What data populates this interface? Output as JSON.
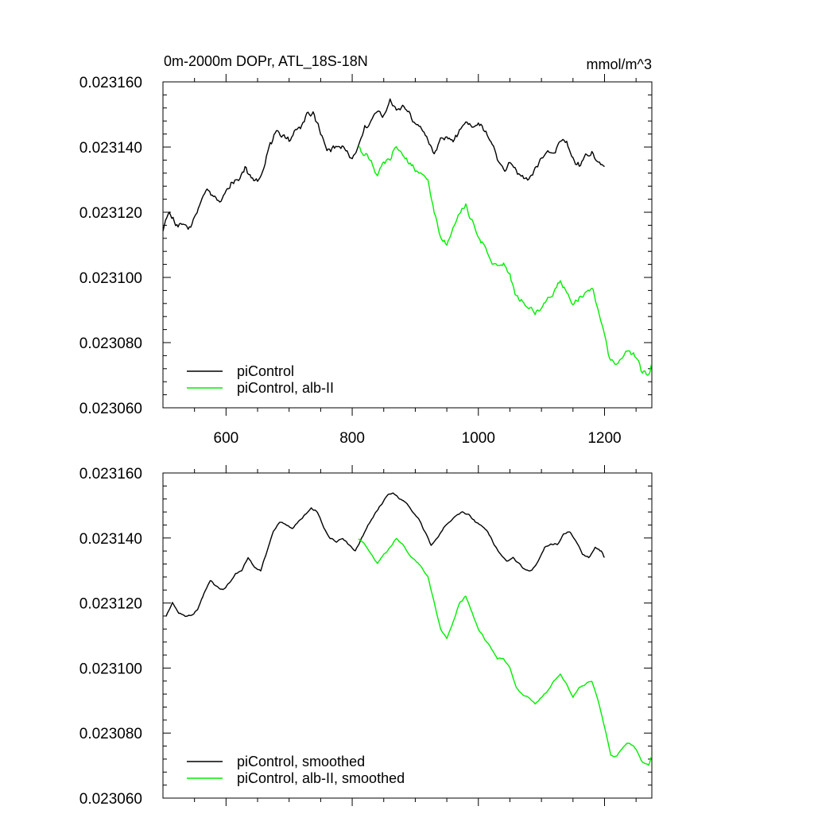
{
  "figure": {
    "title": "0m-2000m DOPr, ATL_18S-18N",
    "units": "mmol/m^3"
  },
  "chart_data": [
    {
      "type": "line",
      "title": "0m-2000m DOPr, ATL_18S-18N",
      "units": "mmol/m^3",
      "xlim": [
        500,
        1275
      ],
      "ylim": [
        0.02306,
        0.02316
      ],
      "x_ticks": [
        600,
        800,
        1000,
        1200
      ],
      "x_tick_labels": [
        "600",
        "800",
        "1000",
        "1200"
      ],
      "y_ticks": [
        0.02306,
        0.02308,
        0.0231,
        0.02312,
        0.02314,
        0.02316
      ],
      "y_tick_labels": [
        "0.023060",
        "0.023080",
        "0.023100",
        "0.023120",
        "0.023140",
        "0.023160"
      ],
      "legend_position": "bottom-left",
      "series": [
        {
          "name": "piControl",
          "color": "#000000",
          "x": [
            500,
            510,
            520,
            530,
            540,
            550,
            560,
            570,
            580,
            590,
            600,
            610,
            620,
            630,
            640,
            650,
            660,
            670,
            680,
            690,
            700,
            710,
            720,
            730,
            740,
            750,
            760,
            770,
            780,
            790,
            800,
            810,
            820,
            830,
            840,
            850,
            860,
            870,
            880,
            890,
            900,
            910,
            920,
            930,
            940,
            950,
            960,
            970,
            980,
            990,
            1000,
            1010,
            1020,
            1030,
            1040,
            1050,
            1060,
            1070,
            1080,
            1090,
            1100,
            1110,
            1120,
            1130,
            1140,
            1150,
            1160,
            1170,
            1180,
            1190,
            1200
          ],
          "values": [
            0.023115,
            0.02312,
            0.023116,
            0.023116,
            0.023115,
            0.023118,
            0.023124,
            0.023127,
            0.023125,
            0.023124,
            0.023126,
            0.023129,
            0.02313,
            0.023134,
            0.02313,
            0.02313,
            0.023134,
            0.023141,
            0.023144,
            0.023144,
            0.023142,
            0.023145,
            0.023147,
            0.02315,
            0.02315,
            0.023144,
            0.023139,
            0.02314,
            0.02314,
            0.023139,
            0.023136,
            0.02314,
            0.023146,
            0.023148,
            0.023151,
            0.023149,
            0.023154,
            0.023152,
            0.023152,
            0.023151,
            0.023147,
            0.023146,
            0.023142,
            0.023138,
            0.023142,
            0.023143,
            0.023142,
            0.023145,
            0.023148,
            0.023146,
            0.023147,
            0.023145,
            0.023142,
            0.023136,
            0.023133,
            0.023135,
            0.023133,
            0.023131,
            0.02313,
            0.023133,
            0.023137,
            0.023138,
            0.023138,
            0.023142,
            0.023142,
            0.023136,
            0.023134,
            0.023137,
            0.023138,
            0.023135,
            0.023134
          ]
        },
        {
          "name": "piControl, alb-II",
          "color": "#00ee00",
          "x": [
            810,
            820,
            830,
            840,
            850,
            860,
            870,
            880,
            890,
            900,
            910,
            920,
            930,
            940,
            950,
            960,
            970,
            980,
            990,
            1000,
            1010,
            1020,
            1030,
            1040,
            1050,
            1060,
            1070,
            1080,
            1090,
            1100,
            1110,
            1120,
            1130,
            1140,
            1150,
            1160,
            1170,
            1180,
            1190,
            1200,
            1210,
            1220,
            1230,
            1240,
            1250,
            1260,
            1270,
            1275
          ],
          "values": [
            0.02314,
            0.023138,
            0.023136,
            0.023131,
            0.023135,
            0.023136,
            0.02314,
            0.023138,
            0.023135,
            0.023133,
            0.023131,
            0.02313,
            0.02312,
            0.023112,
            0.02311,
            0.023116,
            0.02312,
            0.023122,
            0.023117,
            0.023112,
            0.02311,
            0.023105,
            0.023103,
            0.023104,
            0.023101,
            0.023094,
            0.023092,
            0.023091,
            0.023089,
            0.023091,
            0.023093,
            0.023096,
            0.023099,
            0.023095,
            0.023091,
            0.023094,
            0.023095,
            0.023097,
            0.02309,
            0.023082,
            0.023074,
            0.023074,
            0.023076,
            0.023077,
            0.023076,
            0.023071,
            0.02307,
            0.023073
          ]
        }
      ]
    },
    {
      "type": "line",
      "title": "",
      "xlim": [
        500,
        1275
      ],
      "ylim": [
        0.02306,
        0.02316
      ],
      "x_ticks": [
        600,
        800,
        1000,
        1200
      ],
      "x_tick_labels": [],
      "y_ticks": [
        0.02306,
        0.02308,
        0.0231,
        0.02312,
        0.02314,
        0.02316
      ],
      "y_tick_labels": [
        "0.023060",
        "0.023080",
        "0.023100",
        "0.023120",
        "0.023140",
        "0.023160"
      ],
      "legend_position": "bottom-left",
      "series": [
        {
          "name": "piControl, smoothed",
          "color": "#000000",
          "x": [
            505,
            515,
            525,
            535,
            545,
            555,
            565,
            575,
            585,
            595,
            605,
            615,
            625,
            635,
            645,
            655,
            665,
            675,
            685,
            695,
            705,
            715,
            725,
            735,
            745,
            755,
            765,
            775,
            785,
            795,
            805,
            815,
            825,
            835,
            845,
            855,
            865,
            875,
            885,
            895,
            905,
            915,
            925,
            935,
            945,
            955,
            965,
            975,
            985,
            995,
            1005,
            1015,
            1025,
            1035,
            1045,
            1055,
            1065,
            1075,
            1085,
            1095,
            1105,
            1115,
            1125,
            1135,
            1145,
            1155,
            1165,
            1175,
            1185,
            1195,
            1200
          ],
          "values": [
            0.023116,
            0.02312,
            0.023117,
            0.023116,
            0.023116,
            0.023118,
            0.023123,
            0.023127,
            0.023125,
            0.023124,
            0.023126,
            0.023129,
            0.02313,
            0.023134,
            0.023131,
            0.02313,
            0.023136,
            0.023142,
            0.023145,
            0.023144,
            0.023143,
            0.023145,
            0.023147,
            0.023149,
            0.023148,
            0.023143,
            0.02314,
            0.023139,
            0.02314,
            0.023138,
            0.023136,
            0.02314,
            0.023144,
            0.023147,
            0.02315,
            0.023153,
            0.023154,
            0.023152,
            0.023151,
            0.023148,
            0.023146,
            0.023142,
            0.023138,
            0.02314,
            0.023143,
            0.023145,
            0.023147,
            0.023148,
            0.023147,
            0.023145,
            0.023144,
            0.023142,
            0.023138,
            0.023135,
            0.023133,
            0.023134,
            0.023132,
            0.02313,
            0.02313,
            0.023133,
            0.023137,
            0.023138,
            0.023138,
            0.023141,
            0.023142,
            0.023139,
            0.023135,
            0.023134,
            0.023137,
            0.023136,
            0.023134
          ]
        },
        {
          "name": "piControl, alb-II, smoothed",
          "color": "#00ee00",
          "x": [
            810,
            820,
            830,
            840,
            850,
            860,
            870,
            880,
            890,
            900,
            910,
            920,
            930,
            940,
            950,
            960,
            970,
            980,
            990,
            1000,
            1010,
            1020,
            1030,
            1040,
            1050,
            1060,
            1070,
            1080,
            1090,
            1100,
            1110,
            1120,
            1130,
            1140,
            1150,
            1160,
            1170,
            1180,
            1190,
            1200,
            1210,
            1220,
            1230,
            1240,
            1250,
            1260,
            1270,
            1275
          ],
          "values": [
            0.02314,
            0.023138,
            0.023135,
            0.023132,
            0.023135,
            0.023137,
            0.02314,
            0.023138,
            0.023135,
            0.023133,
            0.023131,
            0.023128,
            0.02312,
            0.023112,
            0.023109,
            0.023114,
            0.02312,
            0.023122,
            0.023117,
            0.023112,
            0.023109,
            0.023106,
            0.023103,
            0.023103,
            0.0231,
            0.023094,
            0.023092,
            0.023091,
            0.023089,
            0.023091,
            0.023093,
            0.023096,
            0.023098,
            0.023095,
            0.023091,
            0.023094,
            0.023095,
            0.023096,
            0.02309,
            0.023082,
            0.023073,
            0.023073,
            0.023076,
            0.023077,
            0.023075,
            0.023071,
            0.02307,
            0.023073
          ]
        }
      ]
    }
  ]
}
